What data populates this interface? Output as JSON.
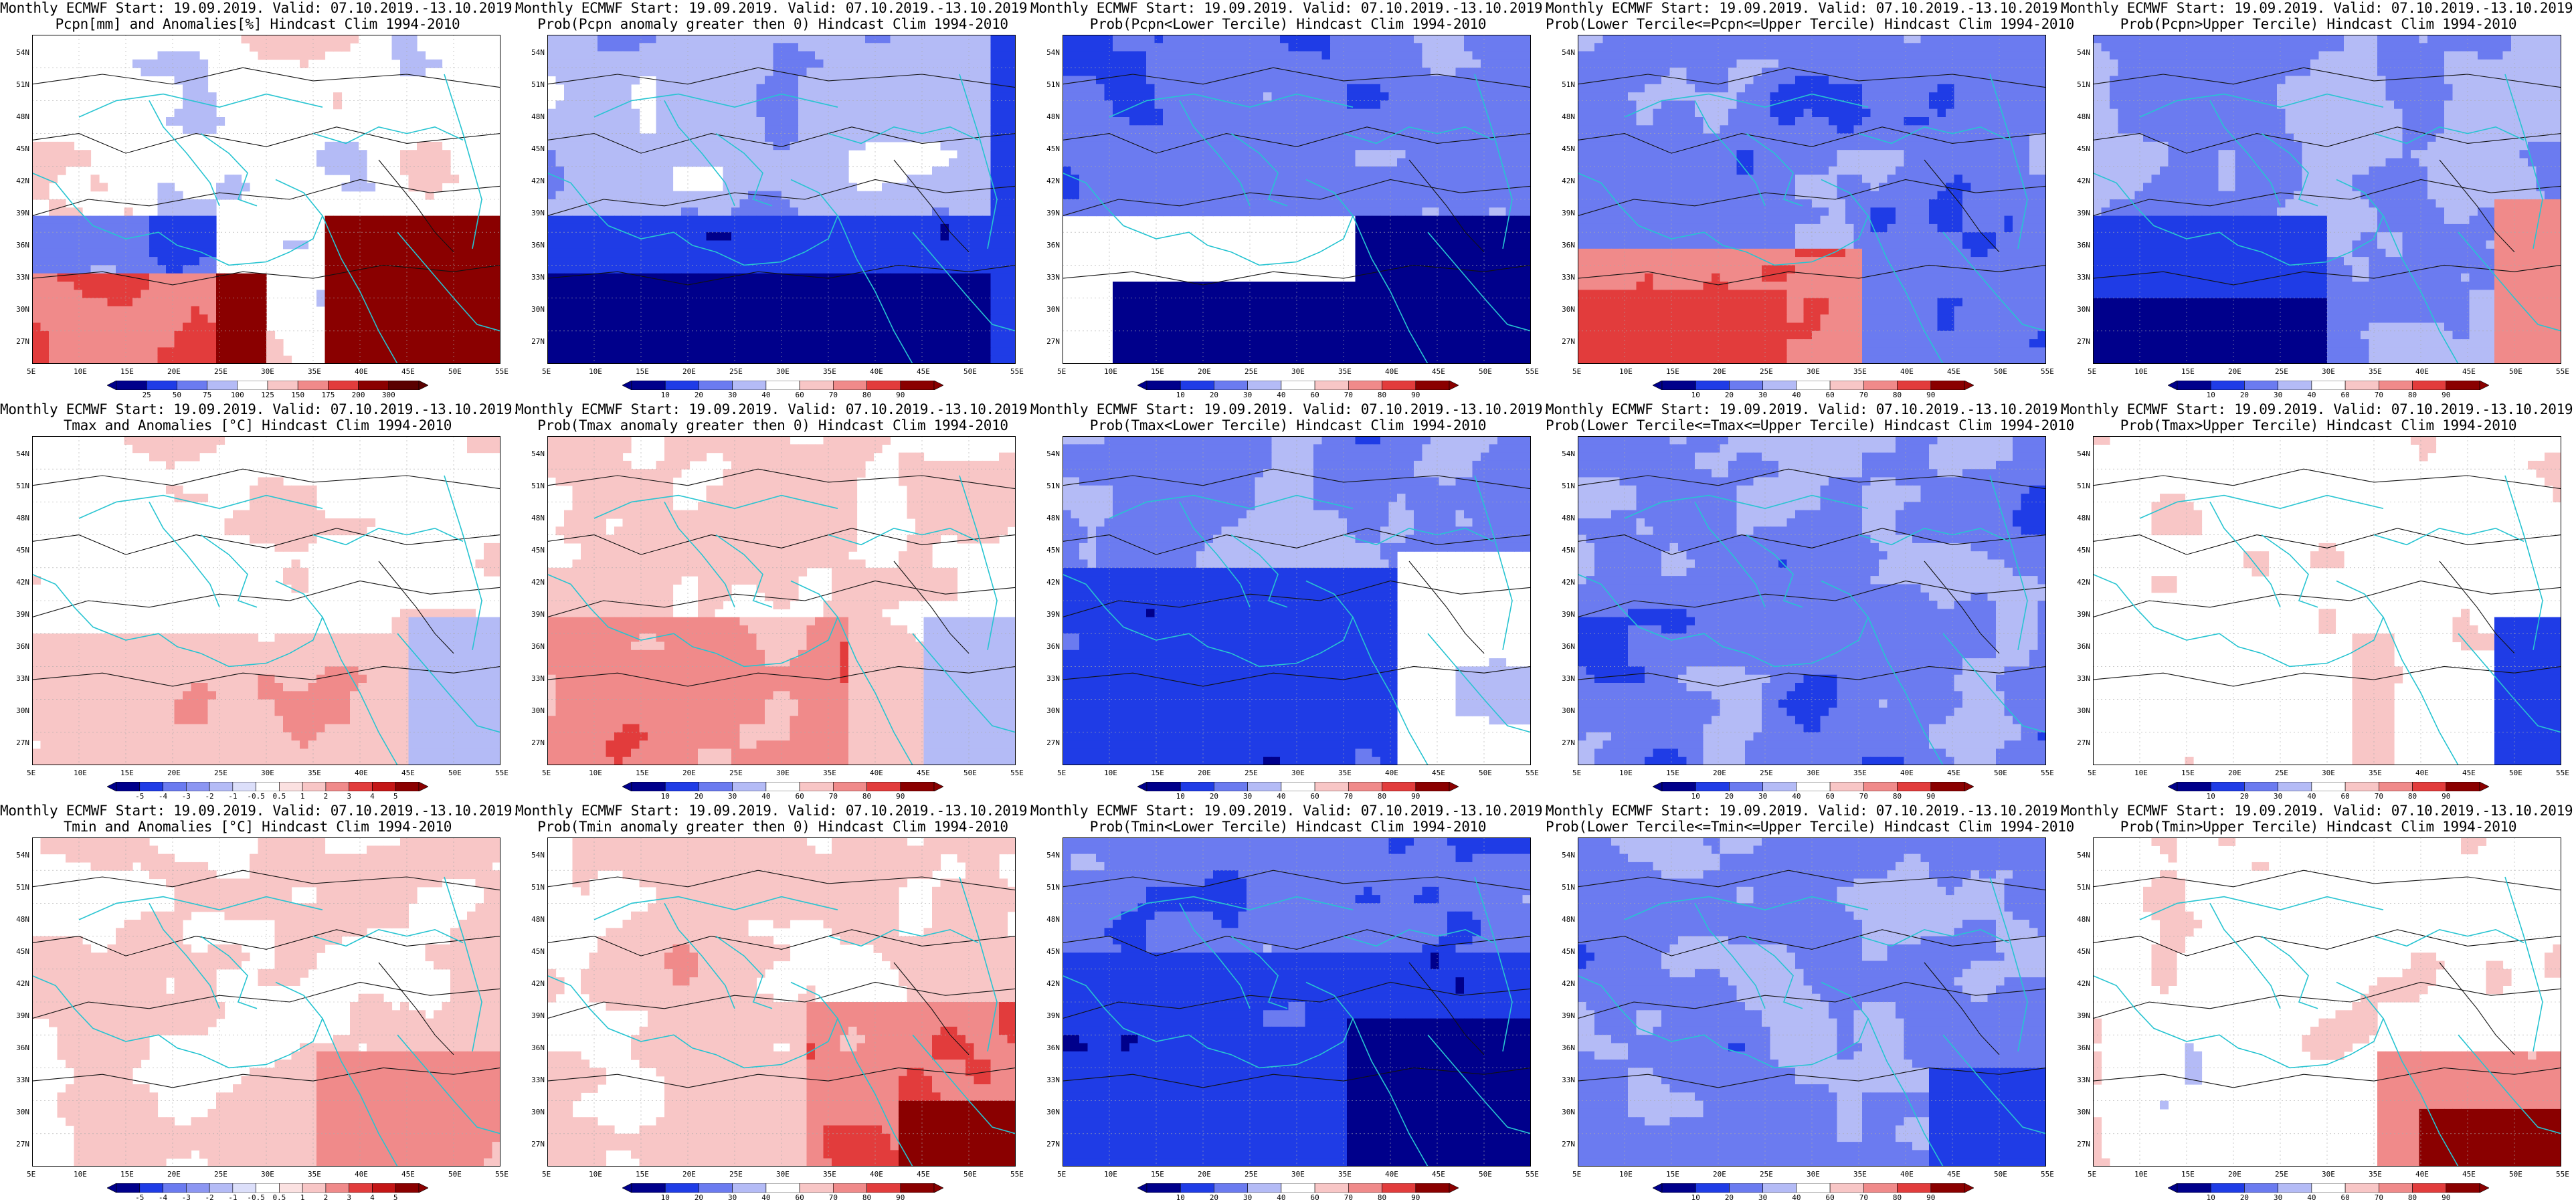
{
  "lat_labels": [
    "54N",
    "51N",
    "48N",
    "45N",
    "42N",
    "39N",
    "36N",
    "33N",
    "30N",
    "27N"
  ],
  "lon_labels": [
    "5E",
    "10E",
    "15E",
    "20E",
    "25E",
    "30E",
    "35E",
    "40E",
    "45E",
    "50E",
    "55E"
  ],
  "colors": {
    "blue4": "#00008b",
    "blue3": "#1f3ce6",
    "blue2": "#6b7bf0",
    "blue1": "#b4bbf6",
    "white": "#ffffff",
    "red1": "#f8c6c6",
    "red2": "#f08a8a",
    "red3": "#e23c3c",
    "red4": "#8a0000",
    "coast": "#27c4d1",
    "contour": "#111111"
  },
  "panels": [
    {
      "id": "p11",
      "title1": "Monthly ECMWF Start: 19.09.2019. Valid: 07.10.2019.-13.10.2019.",
      "title2": "Pcpn[mm] and Anomalies[%] Hindcast Clim 1994-2010",
      "variable": "pcpn",
      "kind": "anomaly",
      "colorbar": [
        "25",
        "50",
        "75",
        "100",
        "125",
        "150",
        "175",
        "200",
        "300"
      ],
      "pattern": "pcpn_anom"
    },
    {
      "id": "p12",
      "title1": "Monthly ECMWF Start: 19.09.2019. Valid: 07.10.2019.-13.10.2019.",
      "title2": "Prob(Pcpn anomaly greater then 0) Hindcast Clim 1994-2010",
      "variable": "pcpn",
      "kind": "prob",
      "colorbar": [
        "10",
        "20",
        "30",
        "40",
        "60",
        "70",
        "80",
        "90"
      ],
      "pattern": "pcpn_blue"
    },
    {
      "id": "p13",
      "title1": "Monthly ECMWF Start: 19.09.2019. Valid: 07.10.2019.-13.10.2019.",
      "title2": "Prob(Pcpn<Lower Tercile) Hindcast Clim 1994-2010",
      "variable": "pcpn",
      "kind": "prob",
      "colorbar": [
        "10",
        "20",
        "30",
        "40",
        "60",
        "70",
        "80",
        "90"
      ],
      "pattern": "pcpn_low"
    },
    {
      "id": "p14",
      "title1": "Monthly ECMWF Start: 19.09.2019. Valid: 07.10.2019.-13.10.2019.",
      "title2": "Prob(Lower Tercile<=Pcpn<=Upper Tercile) Hindcast Clim 1994-2010",
      "variable": "pcpn",
      "kind": "prob",
      "colorbar": [
        "10",
        "20",
        "30",
        "40",
        "60",
        "70",
        "80",
        "90"
      ],
      "pattern": "pcpn_mid"
    },
    {
      "id": "p15",
      "title1": "Monthly ECMWF Start: 19.09.2019. Valid: 07.10.2019.-13.10.2019.",
      "title2": "Prob(Pcpn>Upper Tercile) Hindcast Clim 1994-2010",
      "variable": "pcpn",
      "kind": "prob",
      "colorbar": [
        "10",
        "20",
        "30",
        "40",
        "60",
        "70",
        "80",
        "90"
      ],
      "pattern": "pcpn_up"
    },
    {
      "id": "p21",
      "title1": "Monthly ECMWF Start: 19.09.2019. Valid: 07.10.2019.-13.10.2019.",
      "title2": "Tmax and Anomalies [°C] Hindcast Clim 1994-2010",
      "variable": "tmax",
      "kind": "anomaly",
      "colorbar": [
        "-5",
        "-4",
        "-3",
        "-2",
        "-1",
        "-0.5",
        "0.5",
        "1",
        "2",
        "3",
        "4",
        "5"
      ],
      "pattern": "t_anom_light"
    },
    {
      "id": "p22",
      "title1": "Monthly ECMWF Start: 19.09.2019. Valid: 07.10.2019.-13.10.2019.",
      "title2": "Prob(Tmax anomaly greater then 0) Hindcast Clim 1994-2010",
      "variable": "tmax",
      "kind": "prob",
      "colorbar": [
        "10",
        "20",
        "30",
        "40",
        "60",
        "70",
        "80",
        "90"
      ],
      "pattern": "t_gt0"
    },
    {
      "id": "p23",
      "title1": "Monthly ECMWF Start: 19.09.2019. Valid: 07.10.2019.-13.10.2019.",
      "title2": "Prob(Tmax<Lower Tercile) Hindcast Clim 1994-2010",
      "variable": "tmax",
      "kind": "prob",
      "colorbar": [
        "10",
        "20",
        "30",
        "40",
        "60",
        "70",
        "80",
        "90"
      ],
      "pattern": "t_low"
    },
    {
      "id": "p24",
      "title1": "Monthly ECMWF Start: 19.09.2019. Valid: 07.10.2019.-13.10.2019.",
      "title2": "Prob(Lower Tercile<=Tmax<=Upper Tercile) Hindcast Clim 1994-2010",
      "variable": "tmax",
      "kind": "prob",
      "colorbar": [
        "10",
        "20",
        "30",
        "40",
        "60",
        "70",
        "80",
        "90"
      ],
      "pattern": "t_mid"
    },
    {
      "id": "p25",
      "title1": "Monthly ECMWF Start: 19.09.2019. Valid: 07.10.2019.-13.10.2019.",
      "title2": "Prob(Tmax>Upper Tercile) Hindcast Clim 1994-2010",
      "variable": "tmax",
      "kind": "prob",
      "colorbar": [
        "10",
        "20",
        "30",
        "40",
        "60",
        "70",
        "80",
        "90"
      ],
      "pattern": "t_up"
    },
    {
      "id": "p31",
      "title1": "Monthly ECMWF Start: 19.09.2019. Valid: 07.10.2019.-13.10.2019.",
      "title2": "Tmin and Anomalies [°C] Hindcast Clim 1994-2010",
      "variable": "tmin",
      "kind": "anomaly",
      "colorbar": [
        "-5",
        "-4",
        "-3",
        "-2",
        "-1",
        "-0.5",
        "0.5",
        "1",
        "2",
        "3",
        "4",
        "5"
      ],
      "pattern": "tmin_anom"
    },
    {
      "id": "p32",
      "title1": "Monthly ECMWF Start: 19.09.2019. Valid: 07.10.2019.-13.10.2019.",
      "title2": "Prob(Tmin anomaly greater then 0) Hindcast Clim 1994-2010",
      "variable": "tmin",
      "kind": "prob",
      "colorbar": [
        "10",
        "20",
        "30",
        "40",
        "60",
        "70",
        "80",
        "90"
      ],
      "pattern": "tmin_gt0"
    },
    {
      "id": "p33",
      "title1": "Monthly ECMWF Start: 19.09.2019. Valid: 07.10.2019.-13.10.2019.",
      "title2": "Prob(Tmin<Lower Tercile) Hindcast Clim 1994-2010",
      "variable": "tmin",
      "kind": "prob",
      "colorbar": [
        "10",
        "20",
        "30",
        "40",
        "60",
        "70",
        "80",
        "90"
      ],
      "pattern": "tmin_low"
    },
    {
      "id": "p34",
      "title1": "Monthly ECMWF Start: 19.09.2019. Valid: 07.10.2019.-13.10.2019.",
      "title2": "Prob(Lower Tercile<=Tmin<=Upper Tercile) Hindcast Clim 1994-2010",
      "variable": "tmin",
      "kind": "prob",
      "colorbar": [
        "10",
        "20",
        "30",
        "40",
        "60",
        "70",
        "80",
        "90"
      ],
      "pattern": "tmin_mid"
    },
    {
      "id": "p35",
      "title1": "Monthly ECMWF Start: 19.09.2019. Valid: 07.10.2019.-13.10.2019.",
      "title2": "Prob(Tmin>Upper Tercile) Hindcast Clim 1994-2010",
      "variable": "tmin",
      "kind": "prob",
      "colorbar": [
        "10",
        "20",
        "30",
        "40",
        "60",
        "70",
        "80",
        "90"
      ],
      "pattern": "tmin_up"
    }
  ]
}
